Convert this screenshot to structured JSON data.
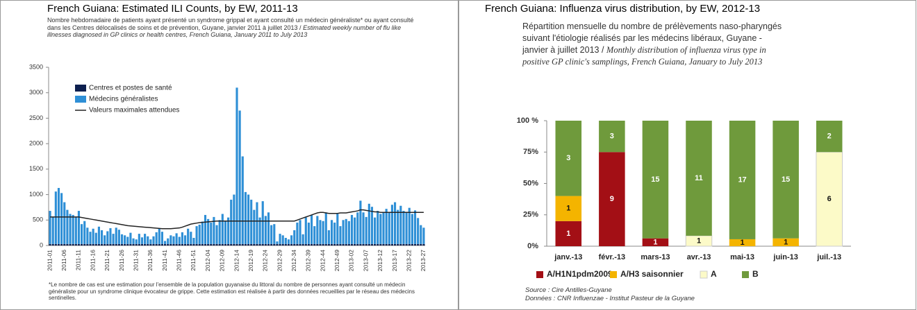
{
  "chart_data": [
    {
      "type": "bar",
      "title": "French Guiana: Estimated ILI Counts, by EW, 2011-13",
      "subtitle": "Nombre hebdomadaire de patients ayant présenté un syndrome grippal et ayant consulté un médecin généraliste* ou ayant consulté dans les Centres délocalisés de soins et de prévention, Guyane, janvier 2011 à juillet 2013  /  ",
      "subtitle_en": "Estimated weekly number of flu like illnesses diagnosed in GP clinics or health centres, French Guiana, January 2011 to July 2013",
      "note": "*Le nombre de cas est une estimation pour l'ensemble de la population guyanaise du littoral du nombre de personnes ayant consulté un médecin généraliste pour un syndrome clinique évocateur de grippe. Cette estimation est réalisée à partir des données recueillies par le réseau des médecins sentinelles.",
      "stacked": true,
      "legend": "upper left",
      "categories": [
        "2011-01",
        null,
        null,
        null,
        null,
        "2011-06",
        null,
        null,
        null,
        null,
        "2011-11",
        null,
        null,
        null,
        null,
        "2011-16",
        null,
        null,
        null,
        null,
        "2011-21",
        null,
        null,
        null,
        null,
        "2011-26",
        null,
        null,
        null,
        null,
        "2011-31",
        null,
        null,
        null,
        null,
        "2011-36",
        null,
        null,
        null,
        null,
        "2011-41",
        null,
        null,
        null,
        null,
        "2011-46",
        null,
        null,
        null,
        null,
        "2011-51",
        null,
        null,
        null,
        null,
        "2012-04",
        null,
        null,
        null,
        null,
        "2012-09",
        null,
        null,
        null,
        null,
        "2012-14",
        null,
        null,
        null,
        null,
        "2012-19",
        null,
        null,
        null,
        null,
        "2012-24",
        null,
        null,
        null,
        null,
        "2012-29",
        null,
        null,
        null,
        null,
        "2012-34",
        null,
        null,
        null,
        null,
        "2012-39",
        null,
        null,
        null,
        null,
        "2012-44",
        null,
        null,
        null,
        null,
        "2012-49",
        null,
        null,
        null,
        null,
        "2013-02",
        null,
        null,
        null,
        null,
        "2013-07",
        null,
        null,
        null,
        null,
        "2013-12",
        null,
        null,
        null,
        null,
        "2013-17",
        null,
        null,
        null,
        null,
        "2013-22",
        null,
        null,
        null,
        null,
        "2013-27"
      ],
      "series": [
        {
          "name": "Centres et postes de santé",
          "color": "#0d1f4f",
          "values": [
            30,
            30,
            30,
            30,
            30,
            30,
            30,
            30,
            30,
            30,
            30,
            30,
            30,
            30,
            30,
            30,
            30,
            30,
            30,
            30,
            30,
            30,
            30,
            30,
            30,
            30,
            30,
            30,
            30,
            30,
            30,
            30,
            30,
            30,
            30,
            30,
            30,
            30,
            30,
            30,
            30,
            30,
            30,
            30,
            30,
            30,
            30,
            30,
            30,
            30,
            30,
            30,
            30,
            30,
            30,
            30,
            30,
            30,
            30,
            30,
            30,
            30,
            30,
            30,
            30,
            30,
            30,
            30,
            30,
            30,
            30,
            30,
            30,
            30,
            30,
            30,
            30,
            30,
            30,
            30,
            30,
            30,
            30,
            30,
            30,
            30,
            30,
            30,
            30,
            30,
            30,
            30,
            30,
            30,
            30,
            30,
            30,
            30,
            30,
            30,
            30,
            30,
            30,
            30,
            30,
            30,
            30,
            30,
            30,
            30,
            30,
            30,
            30,
            30,
            30,
            30,
            30,
            30,
            30,
            30,
            30,
            30,
            30,
            30,
            30,
            30,
            30,
            30,
            30,
            30,
            30
          ]
        },
        {
          "name": "Médecins généralistes",
          "color": "#2e8fd6",
          "values": [
            650,
            530,
            1030,
            1100,
            1000,
            820,
            670,
            590,
            570,
            530,
            650,
            390,
            450,
            320,
            240,
            300,
            220,
            340,
            270,
            170,
            250,
            310,
            200,
            320,
            280,
            190,
            170,
            140,
            220,
            110,
            90,
            200,
            130,
            200,
            150,
            90,
            150,
            230,
            300,
            240,
            60,
            110,
            170,
            150,
            210,
            140,
            230,
            170,
            300,
            240,
            120,
            350,
            380,
            440,
            570,
            490,
            420,
            530,
            370,
            470,
            590,
            450,
            520,
            870,
            970,
            3070,
            2620,
            1720,
            1020,
            970,
            870,
            670,
            820,
            520,
            840,
            550,
            620,
            370,
            390,
            50,
            200,
            170,
            120,
            90,
            170,
            270,
            420,
            470,
            190,
            520,
            420,
            570,
            350,
            550,
            470,
            450,
            620,
            270,
            470,
            420,
            590,
            350,
            470,
            490,
            450,
            570,
            520,
            620,
            850,
            620,
            530,
            790,
            730,
            520,
            650,
            590,
            620,
            690,
            610,
            770,
            820,
            670,
            750,
            650,
            620,
            710,
            590,
            660,
            510,
            370,
            320
          ]
        },
        {
          "name": "Valeurs maximales attendues",
          "color": "#222222",
          "kind": "line",
          "values": [
            560,
            560,
            560,
            560,
            560,
            560,
            560,
            560,
            560,
            560,
            560,
            550,
            540,
            530,
            520,
            510,
            500,
            490,
            480,
            470,
            460,
            450,
            440,
            430,
            420,
            410,
            400,
            390,
            385,
            380,
            375,
            370,
            365,
            360,
            355,
            350,
            345,
            340,
            335,
            330,
            330,
            330,
            330,
            335,
            340,
            345,
            360,
            380,
            400,
            420,
            430,
            440,
            450,
            455,
            460,
            465,
            470,
            475,
            480,
            480,
            480,
            480,
            480,
            480,
            480,
            480,
            480,
            480,
            480,
            480,
            480,
            480,
            480,
            480,
            480,
            480,
            480,
            480,
            480,
            480,
            480,
            480,
            480,
            480,
            480,
            480,
            500,
            520,
            540,
            560,
            580,
            600,
            620,
            640,
            650,
            650,
            640,
            630,
            630,
            630,
            630,
            640,
            640,
            640,
            650,
            660,
            670,
            680,
            700,
            700,
            690,
            680,
            670,
            660,
            660,
            650,
            650,
            650,
            650,
            650,
            650,
            650,
            650,
            650,
            650,
            650,
            650,
            650,
            650,
            650,
            650
          ]
        }
      ],
      "ylim": [
        0,
        3500
      ],
      "yticks": [
        0,
        500,
        1000,
        1500,
        2000,
        2500,
        3000,
        3500
      ],
      "grid": false
    },
    {
      "type": "bar",
      "title": "French Guiana: Influenza virus distribution, by EW, 2012-13",
      "subtitle": "Répartition mensuelle du nombre de prélèvements naso-pharyngés suivant l'étiologie réalisés par les médecins libéraux, Guyane - janvier à juillet 2013 / ",
      "subtitle_en": "Monthly distribution of influenza virus type in positive GP clinic's samplings, French Guiana, January to July 2013",
      "sources": [
        "Source : Cire Antilles-Guyane",
        "Données : CNR Influenzae - Institut Pasteur de la Guyane"
      ],
      "stacked": "percent",
      "legend": "bottom",
      "categories": [
        "janv.-13",
        "févr.-13",
        "mars-13",
        "avr.-13",
        "mai-13",
        "juin-13",
        "juil.-13"
      ],
      "series": [
        {
          "name": "A/H1N1pdm2009",
          "color": "#a30f15",
          "values": [
            1,
            9,
            1,
            0,
            0,
            0,
            0
          ]
        },
        {
          "name": "A/H3 saisonnier",
          "color": "#f4b400",
          "values": [
            1,
            0,
            0,
            0,
            1,
            1,
            0
          ]
        },
        {
          "name": "A",
          "color": "#fcfac8",
          "values": [
            0,
            0,
            0,
            1,
            0,
            0,
            6
          ]
        },
        {
          "name": "B",
          "color": "#6f9a3c",
          "values": [
            3,
            3,
            15,
            11,
            17,
            15,
            2
          ]
        }
      ],
      "ylim": [
        0,
        100
      ],
      "yticks": [
        {
          "value": 0,
          "label": "0%"
        },
        {
          "value": 25,
          "label": "25%"
        },
        {
          "value": 50,
          "label": "50%"
        },
        {
          "value": 75,
          "label": "75%"
        },
        {
          "value": 100,
          "label": "100 %"
        }
      ],
      "grid": false
    }
  ]
}
